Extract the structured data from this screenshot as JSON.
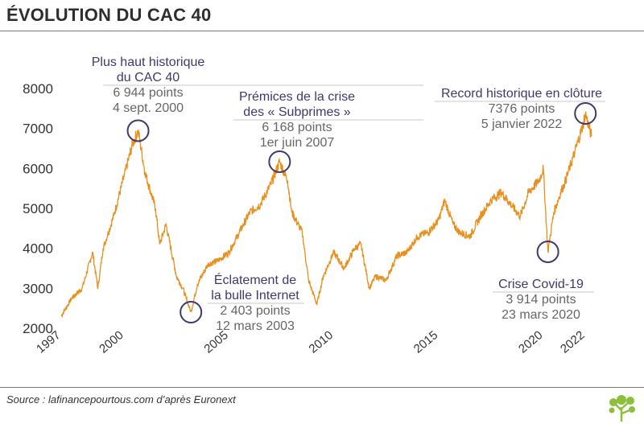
{
  "header": {
    "title": "ÉVOLUTION DU CAC 40"
  },
  "footer": {
    "source": "Source : lafinancepourtous.com d’après Euronext"
  },
  "colors": {
    "line": "#e8901e",
    "circle": "#3f3a6e",
    "title": "#2e2e2e",
    "annotation_title": "#40386f",
    "annotation_value": "#666666"
  },
  "chart_data": {
    "type": "line",
    "title": "ÉVOLUTION DU CAC 40",
    "xlabel": "",
    "ylabel": "",
    "xlim": [
      1997,
      2022.5
    ],
    "ylim": [
      2000,
      8000
    ],
    "yticks": [
      2000,
      3000,
      4000,
      5000,
      6000,
      7000,
      8000
    ],
    "xticks": [
      1997,
      2000,
      2005,
      2010,
      2015,
      2020,
      2022
    ],
    "grid": false,
    "series": [
      {
        "name": "",
        "x": [
          1997.0,
          1997.5,
          1998.0,
          1998.5,
          1998.75,
          1999.0,
          1999.5,
          2000.0,
          2000.4,
          2000.67,
          2001.0,
          2001.5,
          2001.7,
          2002.0,
          2002.5,
          2002.8,
          2003.19,
          2003.5,
          2004.0,
          2004.5,
          2005.0,
          2005.5,
          2006.0,
          2006.5,
          2007.0,
          2007.42,
          2007.8,
          2008.0,
          2008.5,
          2008.8,
          2009.2,
          2009.5,
          2010.0,
          2010.5,
          2011.0,
          2011.3,
          2011.7,
          2012.0,
          2012.5,
          2013.0,
          2013.5,
          2014.0,
          2014.5,
          2015.0,
          2015.3,
          2015.7,
          2016.0,
          2016.5,
          2017.0,
          2017.5,
          2018.0,
          2018.9,
          2019.3,
          2019.8,
          2020.0,
          2020.22,
          2020.5,
          2020.9,
          2021.0,
          2021.5,
          2021.9,
          2022.01,
          2022.3
        ],
        "values": [
          2300,
          2750,
          3000,
          3900,
          3000,
          4000,
          4800,
          5800,
          6600,
          6944,
          5900,
          5000,
          4100,
          4600,
          3300,
          3000,
          2403,
          3100,
          3600,
          3700,
          3900,
          4400,
          4900,
          5100,
          5600,
          6168,
          5700,
          4900,
          4400,
          3200,
          2600,
          3300,
          3900,
          3500,
          4000,
          4100,
          3000,
          3300,
          3200,
          3800,
          3900,
          4300,
          4400,
          4700,
          5200,
          4600,
          4400,
          4300,
          4800,
          5200,
          5400,
          4800,
          5400,
          5700,
          6000,
          3914,
          4900,
          5500,
          5600,
          6400,
          7100,
          7376,
          6800
        ]
      }
    ],
    "annotations": [
      {
        "lines": [
          "Plus haut historique",
          "du CAC 40"
        ],
        "values": [
          "6 944 points",
          "4 sept. 2000"
        ],
        "x": 2000.67,
        "y": 6944
      },
      {
        "lines": [
          "Éclatement de",
          "la bulle Internet"
        ],
        "values": [
          "2 403 points",
          "12 mars 2003"
        ],
        "x": 2003.19,
        "y": 2403
      },
      {
        "lines": [
          "Prémices de la crise",
          "des « Subprimes »"
        ],
        "values": [
          "6 168 points",
          "1er juin 2007"
        ],
        "x": 2007.42,
        "y": 6168
      },
      {
        "lines": [
          "Crise Covid-19"
        ],
        "values": [
          "3 914 points",
          "23 mars 2020"
        ],
        "x": 2020.22,
        "y": 3914
      },
      {
        "lines": [
          "Record historique en clôture"
        ],
        "values": [
          "7376 points",
          "5 janvier 2022"
        ],
        "x": 2022.01,
        "y": 7376
      }
    ]
  }
}
